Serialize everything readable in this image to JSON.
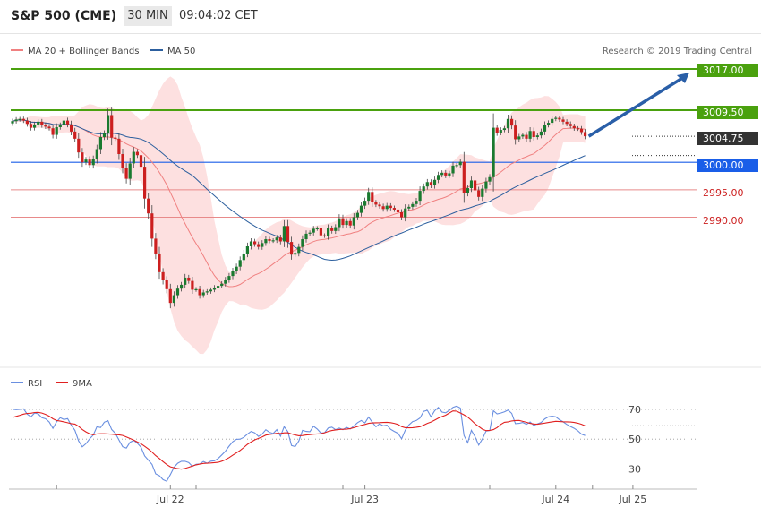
{
  "header": {
    "instrument": "S&P 500 (CME)",
    "period": "30 MIN",
    "time": "09:04:02 CET"
  },
  "legend": {
    "ma20": "MA 20 + Bollinger Bands",
    "ma50": "MA 50",
    "rsi": "RSI",
    "rsi_ma": "9MA"
  },
  "credit": "Research © 2019 Trading Central",
  "colors": {
    "up_candle": "#1a7a2f",
    "down_candle": "#cc1f1f",
    "resistance": "#4aa10e",
    "support_marker": "#1a5ee8",
    "ma20": "#f08080",
    "ma50": "#2c5f9e",
    "band_fill": "#fde0e0",
    "rsi": "#6a8fe0",
    "rsi_ma": "#e02020",
    "price_tag": "#333333"
  },
  "chart_data": [
    {
      "type": "candlestick",
      "title": "S&P 500 (CME) 30 MIN",
      "x_tick_labels": [
        "Jul 22",
        "Jul 23",
        "Jul 24",
        "Jul 25"
      ],
      "ylim": [
        2968,
        3020
      ],
      "levels": [
        {
          "label": "3017.00",
          "value": 3017.0,
          "kind": "resistance",
          "style": "green-box"
        },
        {
          "label": "3009.50",
          "value": 3009.5,
          "kind": "resistance",
          "style": "green-box"
        },
        {
          "label": "3004.75",
          "value": 3004.75,
          "kind": "last-price",
          "style": "dark-box"
        },
        {
          "label": "3000.00",
          "value": 3000.0,
          "kind": "pivot",
          "style": "blue-box"
        },
        {
          "label": "2995.00",
          "value": 2995.0,
          "kind": "support",
          "style": "red-text"
        },
        {
          "label": "2990.00",
          "value": 2990.0,
          "kind": "support",
          "style": "red-text"
        }
      ],
      "arrow": {
        "from": 3004.75,
        "to": 3017.0,
        "direction": "up"
      },
      "close": [
        3007.5,
        3007.8,
        3007.9,
        3007.6,
        3007.0,
        3006.3,
        3006.9,
        3007.4,
        3006.8,
        3006.5,
        3006.2,
        3005.0,
        3006.4,
        3006.8,
        3007.6,
        3006.9,
        3005.6,
        3004.3,
        3001.8,
        3000.0,
        3000.5,
        2999.5,
        3000.6,
        3002.4,
        3004.6,
        3005.3,
        3008.6,
        3004.5,
        3004.3,
        3001.5,
        2999.0,
        2997.0,
        2999.8,
        3001.9,
        3001.3,
        2999.2,
        2993.4,
        2990.7,
        2986.1,
        2983.4,
        2980.0,
        2978.5,
        2976.9,
        2974.4,
        2975.8,
        2977.0,
        2977.7,
        2979.0,
        2978.4,
        2976.8,
        2976.9,
        2975.8,
        2976.3,
        2976.5,
        2976.8,
        2977.2,
        2977.5,
        2977.9,
        2978.6,
        2979.3,
        2980.2,
        2981.0,
        2982.2,
        2983.4,
        2984.7,
        2985.6,
        2985.1,
        2984.6,
        2985.3,
        2986.0,
        2985.7,
        2985.8,
        2986.3,
        2985.6,
        2988.4,
        2985.5,
        2983.2,
        2983.5,
        2984.6,
        2986.0,
        2987.0,
        2987.2,
        2987.9,
        2988.0,
        2986.7,
        2986.6,
        2988.0,
        2987.5,
        2988.2,
        2989.8,
        2988.6,
        2989.3,
        2988.5,
        2990.0,
        2990.8,
        2992.1,
        2993.0,
        2994.6,
        2992.7,
        2992.3,
        2992.0,
        2991.5,
        2992.1,
        2991.7,
        2991.4,
        2990.9,
        2990.0,
        2991.6,
        2991.9,
        2992.4,
        2993.0,
        2994.8,
        2995.6,
        2996.4,
        2995.8,
        2996.8,
        2997.7,
        2998.1,
        2997.6,
        2998.0,
        2999.4,
        2999.5,
        3000.1,
        2994.4,
        2995.3,
        2996.7,
        2994.9,
        2993.7,
        2995.2,
        2996.5,
        2997.3,
        3006.3,
        3005.4,
        3005.9,
        3006.2,
        3007.9,
        3006.7,
        3004.2,
        3004.7,
        3005.0,
        3004.3,
        3005.7,
        3004.6,
        3004.9,
        3005.6,
        3006.8,
        3007.2,
        3007.9,
        3008.1,
        3007.8,
        3007.4,
        3007.0,
        3006.6,
        3006.2,
        3006.1,
        3005.5,
        3004.75
      ],
      "rsi_panel": {
        "ylim": [
          20,
          80
        ],
        "y_ticks": [
          30,
          50,
          70
        ],
        "series": [
          {
            "name": "RSI",
            "values": [
              70.1,
              69.8,
              70.0,
              70.4,
              66.8,
              65.0,
              67.5,
              67.0,
              64.4,
              63.7,
              61.5,
              57.3,
              61.6,
              64.4,
              63.2,
              63.8,
              59.4,
              55.9,
              48.8,
              44.8,
              46.9,
              50.2,
              52.8,
              58.4,
              57.8,
              61.4,
              62.4,
              56.5,
              54.0,
              49.4,
              44.9,
              44.0,
              47.9,
              49.1,
              47.3,
              44.6,
              38.7,
              35.9,
              33.0,
              26.6,
              25.4,
              22.8,
              21.7,
              26.2,
              31.1,
              33.8,
              35.1,
              35.1,
              34.2,
              31.7,
              33.1,
              33.3,
              35.0,
              33.8,
              35.2,
              35.5,
              37.0,
              39.4,
              41.9,
              45.3,
              48.3,
              49.9,
              50.0,
              51.2,
              53.4,
              55.2,
              54.2,
              51.8,
              53.4,
              56.3,
              54.6,
              53.8,
              56.4,
              51.9,
              58.4,
              55.0,
              45.7,
              45.0,
              48.8,
              55.9,
              55.2,
              55.0,
              58.7,
              56.8,
              54.1,
              54.3,
              57.5,
              58.1,
              56.4,
              57.4,
              56.4,
              57.9,
              56.8,
              58.9,
              61.1,
              62.5,
              60.9,
              64.8,
              61.4,
              58.3,
              60.3,
              59.0,
              59.4,
              56.6,
              55.2,
              53.9,
              50.2,
              56.0,
              59.6,
              61.8,
              62.5,
              64.2,
              68.7,
              69.4,
              65.0,
              69.1,
              71.3,
              68.2,
              67.7,
              69.4,
              71.4,
              72.2,
              70.9,
              52.4,
              47.6,
              55.9,
              51.6,
              46.0,
              50.1,
              55.4,
              55.8,
              69.1,
              67.0,
              67.5,
              68.3,
              69.6,
              67.3,
              60.4,
              60.6,
              61.2,
              60.0,
              61.5,
              59.3,
              60.3,
              61.2,
              63.6,
              65.0,
              65.4,
              65.0,
              63.1,
              61.6,
              59.9,
              58.5,
              57.3,
              55.6,
              53.3,
              52.4
            ]
          },
          {
            "name": "9MA",
            "values": [
              64.6,
              65.3,
              66.0,
              66.8,
              67.3,
              67.4,
              67.9,
              68.0,
              67.5,
              66.6,
              65.4,
              63.7,
              62.5,
              62.1,
              61.6,
              61.0,
              60.4,
              60.1,
              58.6,
              56.5,
              54.9,
              53.6,
              52.9,
              53.5,
              53.6,
              53.6,
              53.5,
              53.3,
              53.0,
              52.9,
              52.5,
              51.5,
              50.4,
              49.4,
              48.1,
              46.9,
              45.2,
              43.4,
              41.3,
              38.9,
              37.0,
              34.9,
              32.9,
              31.4,
              30.8,
              30.2,
              29.8,
              30.3,
              31.1,
              31.9,
              32.7,
              33.2,
              33.7,
              33.8,
              34.0,
              34.2,
              34.4,
              35.2,
              36.2,
              37.6,
              39.2,
              40.8,
              42.4,
              44.4,
              46.5,
              48.1,
              49.5,
              50.5,
              51.5,
              52.7,
              53.2,
              53.5,
              53.9,
              53.8,
              54.2,
              54.3,
              53.5,
              52.8,
              52.3,
              52.4,
              52.8,
              53.0,
              53.3,
              53.5,
              53.6,
              54.3,
              55.2,
              55.8,
              56.2,
              56.5,
              56.6,
              56.7,
              57.1,
              57.7,
              58.5,
              59.3,
              59.9,
              60.6,
              60.9,
              61.0,
              61.1,
              61.2,
              61.3,
              61.1,
              60.6,
              59.9,
              58.4,
              57.7,
              57.6,
              57.7,
              58.0,
              58.4,
              59.4,
              60.6,
              61.5,
              62.8,
              64.1,
              65.2,
              66.1,
              67.6,
              69.0,
              68.8,
              67.6,
              66.3,
              64.8,
              62.7,
              60.3,
              58.5,
              56.7,
              55.7,
              55.9,
              56.4,
              57.8,
              59.9,
              61.3,
              61.6,
              62.2,
              62.5,
              62.6,
              61.9,
              61.3,
              60.6,
              60.2,
              60.0,
              60.4,
              60.8,
              61.2,
              61.6,
              62.0,
              61.8,
              61.7,
              61.6,
              61.5,
              61.2,
              60.7,
              60.0,
              58.9
            ]
          }
        ]
      }
    }
  ]
}
